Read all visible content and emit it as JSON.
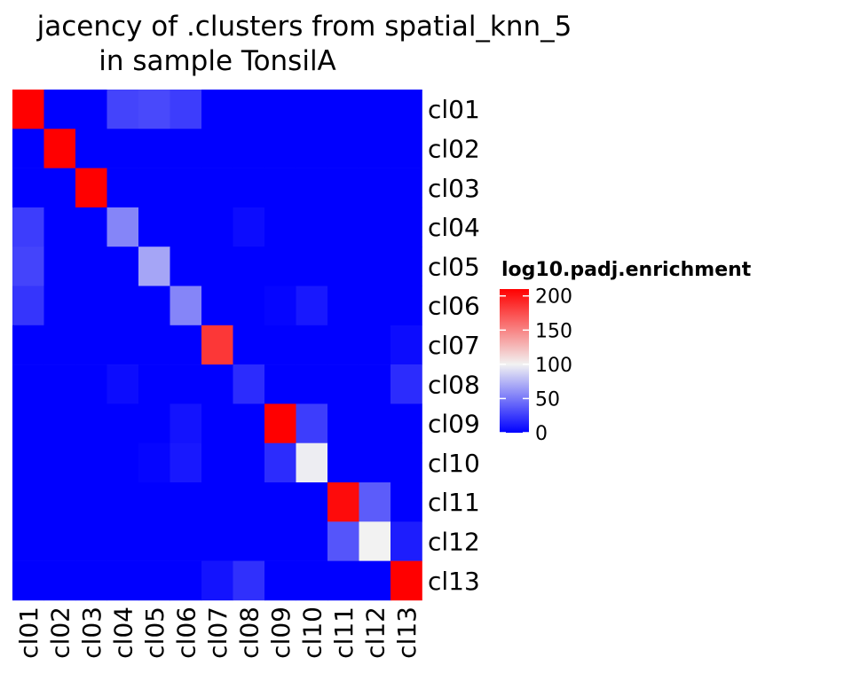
{
  "chart_data": {
    "type": "heatmap",
    "title": "jacency of .clusters from spatial_knn_5",
    "subtitle": "in sample TonsilA",
    "xlabel": "",
    "ylabel": "",
    "x_categories": [
      "cl01",
      "cl02",
      "cl03",
      "cl04",
      "cl05",
      "cl06",
      "cl07",
      "cl08",
      "cl09",
      "cl10",
      "cl11",
      "cl12",
      "cl13"
    ],
    "y_categories": [
      "cl01",
      "cl02",
      "cl03",
      "cl04",
      "cl05",
      "cl06",
      "cl07",
      "cl08",
      "cl09",
      "cl10",
      "cl11",
      "cl12",
      "cl13"
    ],
    "values": [
      [
        210,
        0,
        0,
        28,
        30,
        25,
        0,
        0,
        0,
        0,
        0,
        0,
        0
      ],
      [
        0,
        210,
        0,
        0,
        0,
        0,
        0,
        0,
        0,
        0,
        0,
        0,
        0
      ],
      [
        0,
        0,
        210,
        0,
        0,
        0,
        0,
        0,
        0,
        0,
        0,
        0,
        0
      ],
      [
        25,
        0,
        0,
        55,
        0,
        0,
        0,
        5,
        0,
        0,
        0,
        0,
        0
      ],
      [
        28,
        0,
        0,
        0,
        68,
        0,
        0,
        0,
        0,
        0,
        0,
        0,
        0
      ],
      [
        22,
        0,
        0,
        0,
        0,
        55,
        0,
        0,
        2,
        10,
        0,
        0,
        0
      ],
      [
        0,
        0,
        0,
        0,
        0,
        0,
        185,
        0,
        0,
        0,
        0,
        0,
        5
      ],
      [
        0,
        0,
        0,
        5,
        0,
        0,
        0,
        18,
        0,
        0,
        0,
        0,
        18
      ],
      [
        0,
        0,
        0,
        0,
        0,
        8,
        0,
        0,
        210,
        25,
        0,
        0,
        0
      ],
      [
        0,
        0,
        0,
        0,
        2,
        10,
        0,
        0,
        18,
        98,
        0,
        0,
        0
      ],
      [
        0,
        0,
        0,
        0,
        0,
        0,
        0,
        0,
        0,
        0,
        205,
        38,
        0
      ],
      [
        0,
        0,
        0,
        0,
        0,
        0,
        0,
        0,
        0,
        0,
        35,
        100,
        12
      ],
      [
        0,
        0,
        0,
        0,
        0,
        0,
        8,
        20,
        0,
        0,
        0,
        0,
        210
      ]
    ],
    "colorscale": {
      "low": "#0000ff",
      "mid": "#f2f2f2",
      "high": "#ff0000",
      "domain": [
        0,
        100,
        210
      ]
    },
    "legend": {
      "title": "log10.padj.enrichment",
      "ticks": [
        0,
        50,
        100,
        150,
        200
      ],
      "tick_labels": [
        "0",
        "50",
        "100",
        "150",
        "200"
      ],
      "placement": "right"
    },
    "grid": false
  }
}
